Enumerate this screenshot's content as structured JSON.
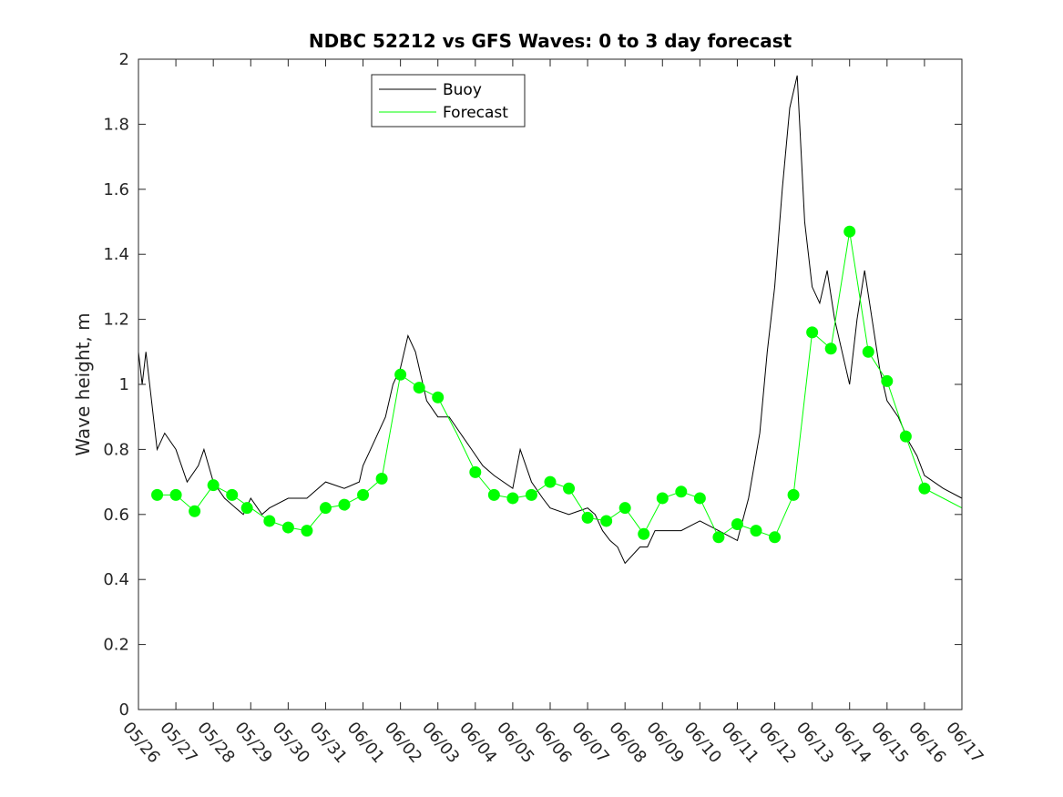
{
  "chart_data": {
    "type": "line",
    "title": "NDBC 52212 vs GFS Waves: 0 to 3 day forecast",
    "xlabel": "",
    "ylabel": "Wave height, m",
    "xlim": [
      "05/26",
      "06/17"
    ],
    "ylim": [
      0,
      2
    ],
    "x_ticks": [
      "05/26",
      "05/27",
      "05/28",
      "05/29",
      "05/30",
      "05/31",
      "06/01",
      "06/02",
      "06/03",
      "06/04",
      "06/05",
      "06/06",
      "06/07",
      "06/08",
      "06/09",
      "06/10",
      "06/11",
      "06/12",
      "06/13",
      "06/14",
      "06/15",
      "06/16",
      "06/17"
    ],
    "y_ticks": [
      "0",
      "0.2",
      "0.4",
      "0.6",
      "0.8",
      "1",
      "1.2",
      "1.4",
      "1.6",
      "1.8",
      "2"
    ],
    "legend": {
      "position": "top-left",
      "entries": [
        "Buoy",
        "Forecast"
      ]
    },
    "grid": false,
    "colors": {
      "buoy": "#000000",
      "forecast": "#00ff00"
    },
    "series": [
      {
        "name": "Buoy",
        "x_days": [
          0,
          0.1,
          0.2,
          0.3,
          0.4,
          0.5,
          0.7,
          1.0,
          1.3,
          1.6,
          1.75,
          2.0,
          2.3,
          2.6,
          2.8,
          3.0,
          3.3,
          3.5,
          4.0,
          4.5,
          5.0,
          5.5,
          5.9,
          6.0,
          6.2,
          6.4,
          6.6,
          6.8,
          7.0,
          7.2,
          7.4,
          7.5,
          7.7,
          8.0,
          8.3,
          8.6,
          8.9,
          9.2,
          9.5,
          10.0,
          10.2,
          10.5,
          10.8,
          11.0,
          11.5,
          12.0,
          12.2,
          12.4,
          12.6,
          12.8,
          13.0,
          13.4,
          13.6,
          13.8,
          14.0,
          14.5,
          15.0,
          15.5,
          16.0,
          16.3,
          16.6,
          16.8,
          17.0,
          17.2,
          17.4,
          17.6,
          17.8,
          18.0,
          18.2,
          18.4,
          18.6,
          18.8,
          19.0,
          19.2,
          19.4,
          19.6,
          19.8,
          20.0,
          20.3,
          20.6,
          20.8,
          21.0,
          21.5,
          22.0
        ],
        "values": [
          1.1,
          1.0,
          1.1,
          1.0,
          0.9,
          0.8,
          0.85,
          0.8,
          0.7,
          0.75,
          0.8,
          0.7,
          0.65,
          0.62,
          0.6,
          0.65,
          0.6,
          0.62,
          0.65,
          0.65,
          0.7,
          0.68,
          0.7,
          0.75,
          0.8,
          0.85,
          0.9,
          1.0,
          1.05,
          1.15,
          1.1,
          1.05,
          0.95,
          0.9,
          0.9,
          0.85,
          0.8,
          0.75,
          0.72,
          0.68,
          0.8,
          0.7,
          0.65,
          0.62,
          0.6,
          0.62,
          0.6,
          0.55,
          0.52,
          0.5,
          0.45,
          0.5,
          0.5,
          0.55,
          0.55,
          0.55,
          0.58,
          0.55,
          0.52,
          0.65,
          0.85,
          1.1,
          1.3,
          1.6,
          1.85,
          1.95,
          1.5,
          1.3,
          1.25,
          1.35,
          1.2,
          1.1,
          1.0,
          1.2,
          1.35,
          1.2,
          1.05,
          0.95,
          0.9,
          0.82,
          0.78,
          0.72,
          0.68,
          0.65
        ]
      },
      {
        "name": "Forecast",
        "x_days": [
          0.5,
          1.0,
          1.5,
          2.0,
          2.5,
          3.0,
          3.5,
          4.0,
          4.5,
          5.0,
          5.5,
          6.0,
          6.5,
          7.0,
          7.5,
          8.0,
          8.5,
          9.0,
          9.5,
          10.0,
          10.5,
          11.0,
          11.5,
          12.0,
          12.5,
          13.0,
          13.5,
          14.0,
          14.5,
          15.0,
          15.5,
          16.0,
          16.5,
          17.0,
          17.5,
          18.0,
          18.5,
          19.0,
          19.5,
          20.0,
          20.5,
          21.0,
          21.5,
          22.0
        ],
        "values": [
          0.66,
          0.66,
          0.61,
          0.69,
          0.66,
          0.62,
          0.58,
          0.56,
          0.55,
          0.62,
          0.63,
          0.66,
          0.71,
          1.03,
          0.99,
          0.96,
          0.85,
          0.73,
          0.66,
          0.65,
          0.66,
          0.7,
          0.68,
          0.59,
          0.58,
          0.62,
          0.54,
          0.65,
          0.67,
          0.65,
          0.53,
          0.57,
          0.55,
          0.53,
          0.66,
          1.16,
          1.11,
          1.47,
          1.1,
          1.01,
          0.84,
          0.68,
          0.65,
          0.62
        ]
      }
    ],
    "forecast_markers": {
      "x_days": [
        0.5,
        1.0,
        1.5,
        2.0,
        2.5,
        2.9,
        3.5,
        4.0,
        4.5,
        5.0,
        5.5,
        6.0,
        6.5,
        7.0,
        7.5,
        8.0,
        9.0,
        9.5,
        10.0,
        10.5,
        11.0,
        11.5,
        12.0,
        12.5,
        13.0,
        13.5,
        14.0,
        14.5,
        15.0,
        15.5,
        16.0,
        16.5,
        17.0,
        17.5,
        18.0,
        18.5,
        19.0,
        19.5,
        20.0,
        20.5,
        21.0
      ],
      "values": [
        0.66,
        0.66,
        0.61,
        0.69,
        0.66,
        0.62,
        0.58,
        0.56,
        0.55,
        0.62,
        0.63,
        0.66,
        0.71,
        1.03,
        0.99,
        0.96,
        0.73,
        0.66,
        0.65,
        0.66,
        0.7,
        0.68,
        0.59,
        0.58,
        0.62,
        0.54,
        0.65,
        0.67,
        0.65,
        0.53,
        0.57,
        0.55,
        0.53,
        0.66,
        1.16,
        1.11,
        1.47,
        1.1,
        1.01,
        0.84,
        0.68
      ]
    }
  }
}
